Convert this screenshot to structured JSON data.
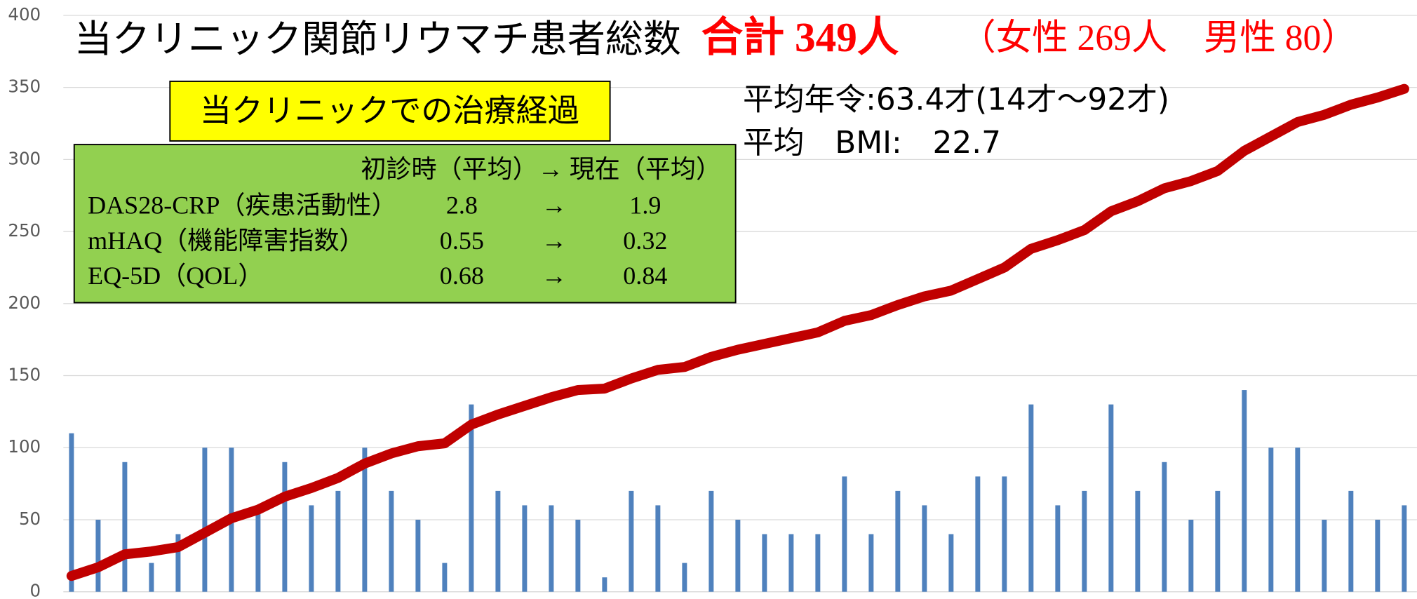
{
  "chart_data": {
    "type": "bar",
    "annotations": {
      "title": "当クリニック関節リウマチ患者総数",
      "total": "合計 349人",
      "breakdown": "（女性 269人　男性 80）",
      "box_label": "当クリニックでの治療経過",
      "table": {
        "header": "初診時（平均）→ 現在（平均）",
        "rows": [
          [
            "DAS28-CRP（疾患活動性）",
            "2.8",
            "→",
            "1.9"
          ],
          [
            "mHAQ（機能障害指数）",
            "0.55",
            "→",
            "0.32"
          ],
          [
            "EQ-5D（QOL）",
            "0.68",
            "→",
            "0.84"
          ]
        ]
      },
      "stats": [
        "平均年令:63.4才(14才～92才)",
        "平均　BMI:　22.7"
      ]
    },
    "categories": [
      null,
      null,
      null,
      null,
      null,
      null,
      null,
      null,
      null,
      null,
      null,
      null,
      null,
      null,
      null,
      null,
      null,
      null,
      null,
      null,
      null,
      null,
      null,
      null,
      null,
      null,
      null,
      null,
      null,
      null,
      null,
      null,
      null,
      null,
      null,
      null,
      null,
      null,
      null,
      null,
      null,
      null,
      null,
      null,
      null,
      null,
      null,
      null,
      null,
      null,
      null
    ],
    "series": [
      {
        "type": "bar",
        "color": "#4f81bd",
        "values": [
          110,
          50,
          90,
          20,
          40,
          100,
          100,
          55,
          90,
          60,
          70,
          100,
          70,
          50,
          20,
          130,
          70,
          60,
          60,
          50,
          10,
          70,
          60,
          20,
          70,
          50,
          40,
          40,
          40,
          80,
          40,
          70,
          60,
          40,
          80,
          80,
          130,
          60,
          70,
          130,
          70,
          90,
          50,
          70,
          140,
          100,
          100,
          50,
          70,
          50,
          60
        ]
      },
      {
        "type": "line",
        "color": "#c00000",
        "values": [
          11,
          17,
          26,
          28,
          31,
          41,
          51,
          57,
          66,
          72,
          79,
          89,
          96,
          101,
          103,
          116,
          123,
          129,
          135,
          140,
          141,
          148,
          154,
          156,
          163,
          168,
          172,
          176,
          180,
          188,
          192,
          199,
          205,
          209,
          217,
          225,
          238,
          244,
          251,
          264,
          271,
          280,
          285,
          292,
          306,
          316,
          326,
          331,
          338,
          343,
          349
        ]
      }
    ],
    "ylim": [
      0,
      400
    ],
    "yticks": [
      0,
      50,
      100,
      150,
      200,
      250,
      300,
      350,
      400
    ],
    "grid": true
  }
}
